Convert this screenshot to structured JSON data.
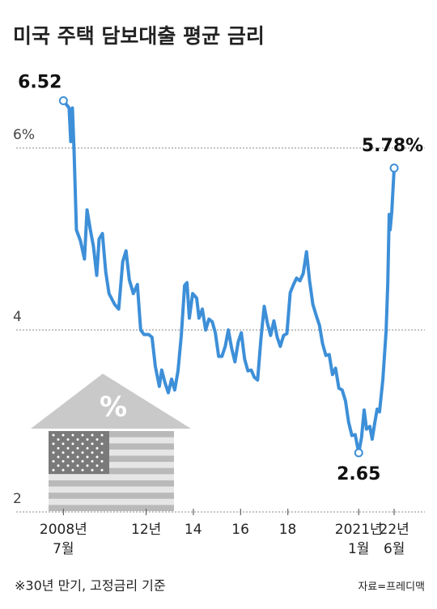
{
  "chart_data": {
    "type": "line",
    "title": "미국 주택 담보대출 평균 금리",
    "icon_label": "%",
    "note": "※30년 만기, 고정금리 기준",
    "source": "자료=프레디맥",
    "xlim": [
      2006.5,
      2023.8
    ],
    "ylim": [
      2,
      7
    ],
    "xticks": [
      {
        "value": 2008.5,
        "label": "2008년\n7월"
      },
      {
        "value": 2012,
        "label": "12년"
      },
      {
        "value": 2014,
        "label": "14"
      },
      {
        "value": 2016,
        "label": "16"
      },
      {
        "value": 2018,
        "label": "18"
      },
      {
        "value": 2021,
        "label": "2021년\n1월"
      },
      {
        "value": 2022.5,
        "label": "22년\n6월"
      }
    ],
    "yticks": [
      2,
      4,
      {
        "value": 6,
        "label": "6%"
      }
    ],
    "grid": true,
    "x": [
      2008.5,
      2008.74,
      2008.81,
      2008.88,
      2008.95,
      2009.05,
      2009.22,
      2009.39,
      2009.5,
      2009.64,
      2009.77,
      2009.91,
      2010.01,
      2010.15,
      2010.29,
      2010.43,
      2010.67,
      2010.84,
      2011.01,
      2011.15,
      2011.29,
      2011.46,
      2011.63,
      2011.77,
      2011.91,
      2012.11,
      2012.25,
      2012.39,
      2012.56,
      2012.66,
      2012.8,
      2012.94,
      2013.08,
      2013.21,
      2013.35,
      2013.49,
      2013.63,
      2013.73,
      2013.83,
      2013.97,
      2014.14,
      2014.24,
      2014.38,
      2014.52,
      2014.66,
      2014.8,
      2014.93,
      2015.07,
      2015.21,
      2015.35,
      2015.48,
      2015.62,
      2015.76,
      2015.9,
      2016.03,
      2016.17,
      2016.31,
      2016.45,
      2016.58,
      2016.72,
      2016.86,
      2017.0,
      2017.13,
      2017.27,
      2017.41,
      2017.55,
      2017.68,
      2017.82,
      2017.96,
      2018.1,
      2018.24,
      2018.37,
      2018.51,
      2018.65,
      2018.79,
      2018.92,
      2019.06,
      2019.2,
      2019.34,
      2019.47,
      2019.61,
      2019.75,
      2019.89,
      2020.02,
      2020.16,
      2020.3,
      2020.44,
      2020.57,
      2020.71,
      2020.85,
      2021.0,
      2021.12,
      2021.23,
      2021.33,
      2021.47,
      2021.57,
      2021.68,
      2021.78,
      2021.88,
      2022.02,
      2022.16,
      2022.23,
      2022.29,
      2022.33,
      2022.4,
      2022.5
    ],
    "series": [
      {
        "color": "#3d8fd8",
        "values": [
          6.52,
          6.44,
          6.07,
          6.44,
          5.97,
          5.1,
          4.98,
          4.78,
          5.32,
          5.1,
          4.92,
          4.6,
          5.0,
          5.06,
          4.64,
          4.4,
          4.28,
          4.23,
          4.75,
          4.87,
          4.55,
          4.4,
          4.5,
          4.0,
          3.95,
          3.95,
          3.92,
          3.6,
          3.38,
          3.56,
          3.42,
          3.31,
          3.46,
          3.34,
          3.55,
          3.94,
          4.49,
          4.52,
          4.13,
          4.4,
          4.35,
          4.13,
          4.23,
          4.0,
          4.12,
          4.09,
          3.97,
          3.71,
          3.71,
          3.82,
          4.0,
          3.8,
          3.65,
          3.87,
          3.97,
          3.68,
          3.55,
          3.56,
          3.48,
          3.45,
          3.9,
          4.26,
          4.08,
          3.94,
          4.1,
          3.92,
          3.82,
          3.94,
          3.96,
          4.41,
          4.5,
          4.57,
          4.54,
          4.62,
          4.86,
          4.54,
          4.28,
          4.16,
          4.05,
          3.85,
          3.72,
          3.73,
          3.51,
          3.58,
          3.36,
          3.34,
          3.22,
          2.99,
          2.84,
          2.85,
          2.65,
          2.82,
          3.12,
          2.91,
          2.94,
          2.8,
          2.98,
          3.13,
          3.1,
          3.45,
          3.99,
          4.51,
          5.27,
          5.1,
          5.3,
          5.78
        ],
        "value_labels": [
          "6.52",
          null,
          null,
          null,
          null,
          null,
          null,
          null,
          null,
          null,
          null,
          null,
          null,
          null,
          null,
          null,
          null,
          null,
          null,
          null,
          null,
          null,
          null,
          null,
          null,
          null,
          null,
          null,
          null,
          null,
          null,
          null,
          null,
          null,
          null,
          null,
          null,
          null,
          null,
          null,
          null,
          null,
          null,
          null,
          null,
          null,
          null,
          null,
          null,
          null,
          null,
          null,
          null,
          null,
          null,
          null,
          null,
          null,
          null,
          null,
          null,
          null,
          null,
          null,
          null,
          null,
          null,
          null,
          null,
          null,
          null,
          null,
          null,
          null,
          null,
          null,
          null,
          null,
          null,
          null,
          null,
          null,
          null,
          null,
          null,
          null,
          null,
          null,
          null,
          null,
          "2.65",
          null,
          null,
          null,
          null,
          null,
          null,
          null,
          null,
          null,
          null,
          null,
          null,
          null,
          null,
          "5.78%"
        ]
      }
    ]
  }
}
